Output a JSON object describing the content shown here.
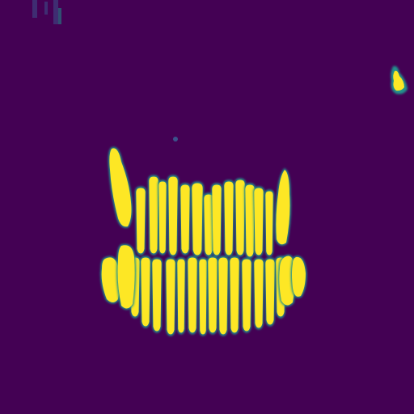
{
  "image": {
    "description_kind": "segmentation-mask",
    "colormap": "viridis",
    "colors": {
      "background": "#440154",
      "mask": "#fde725",
      "edge": "#21918c",
      "edge_soft": "#3b528b"
    },
    "regions": [
      "upper-teeth-row",
      "lower-teeth-row",
      "left-molars",
      "right-molars",
      "top-left-artifact",
      "top-right-artifact",
      "center-speck"
    ]
  }
}
